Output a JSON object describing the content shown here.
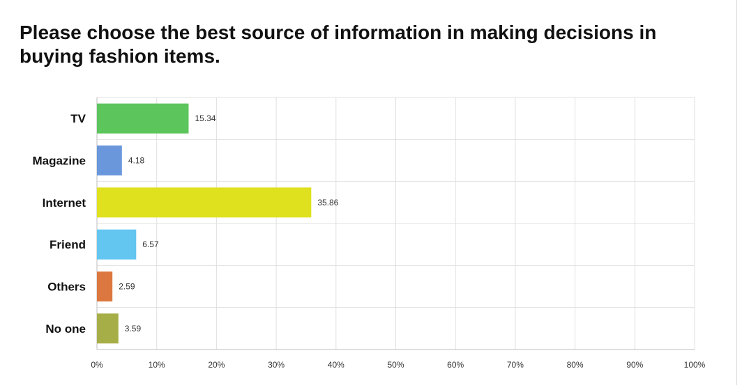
{
  "chart_data": {
    "type": "bar",
    "orientation": "horizontal",
    "title": "Please choose the best source of information in making decisions in buying fashion items.",
    "categories": [
      "TV",
      "Magazine",
      "Internet",
      "Friend",
      "Others",
      "No one"
    ],
    "values": [
      15.34,
      4.18,
      35.86,
      6.57,
      2.59,
      3.59
    ],
    "value_labels": [
      "15.34",
      "4.18",
      "35.86",
      "6.57",
      "2.59",
      "3.59"
    ],
    "colors": [
      "#5cc55c",
      "#6a97dc",
      "#dfe01e",
      "#63c6f0",
      "#dc773f",
      "#a6ae48"
    ],
    "xlim": [
      0,
      100
    ],
    "x_ticks": [
      0,
      10,
      20,
      30,
      40,
      50,
      60,
      70,
      80,
      90,
      100
    ],
    "x_tick_labels": [
      "0%",
      "10%",
      "20%",
      "30%",
      "40%",
      "50%",
      "60%",
      "70%",
      "80%",
      "90%",
      "100%"
    ],
    "xlabel": "",
    "ylabel": "",
    "grid": true,
    "legend": "none"
  }
}
